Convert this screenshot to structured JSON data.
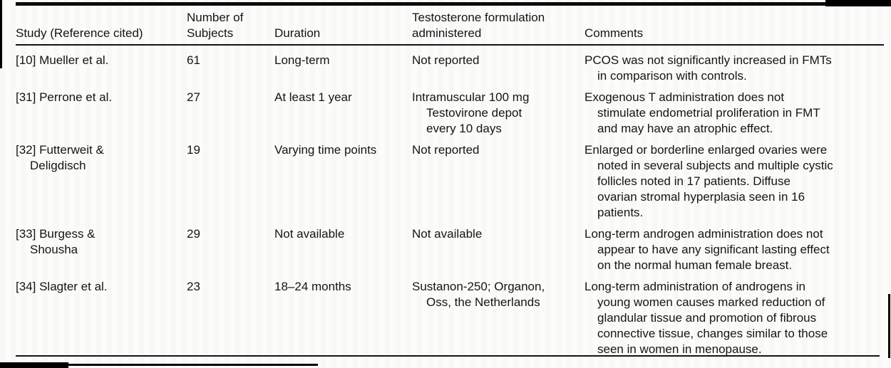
{
  "colors": {
    "ink": "#151515",
    "paper": "#fcfcfa"
  },
  "table": {
    "columns": [
      {
        "key": "study",
        "label": "Study (Reference cited)"
      },
      {
        "key": "subjects",
        "label": "Number of\nSubjects"
      },
      {
        "key": "duration",
        "label": "Duration"
      },
      {
        "key": "formulation",
        "label": "Testosterone formulation\nadministered"
      },
      {
        "key": "comments",
        "label": "Comments"
      }
    ],
    "rows": [
      {
        "study": "[10] Mueller et al.",
        "subjects": "61",
        "duration": "Long-term",
        "formulation": "Not reported",
        "comments": "PCOS was not significantly increased in FMTs\nin comparison with controls."
      },
      {
        "study": "[31] Perrone et al.",
        "subjects": "27",
        "duration": "At least 1 year",
        "formulation": "Intramuscular 100 mg\nTestovirone depot\nevery 10 days",
        "comments": "Exogenous T administration does not\nstimulate endometrial proliferation in FMT\nand may have an atrophic effect."
      },
      {
        "study": "[32] Futterweit &\nDeligdisch",
        "subjects": "19",
        "duration": "Varying time points",
        "formulation": "Not reported",
        "comments": "Enlarged or borderline enlarged ovaries were\nnoted in several subjects and multiple cystic\nfollicles noted in 17 patients. Diffuse\novarian stromal hyperplasia seen in 16\npatients."
      },
      {
        "study": "[33] Burgess &\nShousha",
        "subjects": "29",
        "duration": "Not available",
        "formulation": "Not available",
        "comments": "Long-term androgen administration does not\nappear to have any significant lasting effect\non the normal human female breast."
      },
      {
        "study": "[34] Slagter et al.",
        "subjects": "23",
        "duration": "18–24 months",
        "formulation": "Sustanon-250; Organon,\nOss, the Netherlands",
        "comments": "Long-term administration of androgens in\nyoung women causes marked reduction of\nglandular tissue and promotion of fibrous\nconnective tissue, changes similar to those\nseen in women in menopause."
      }
    ]
  }
}
